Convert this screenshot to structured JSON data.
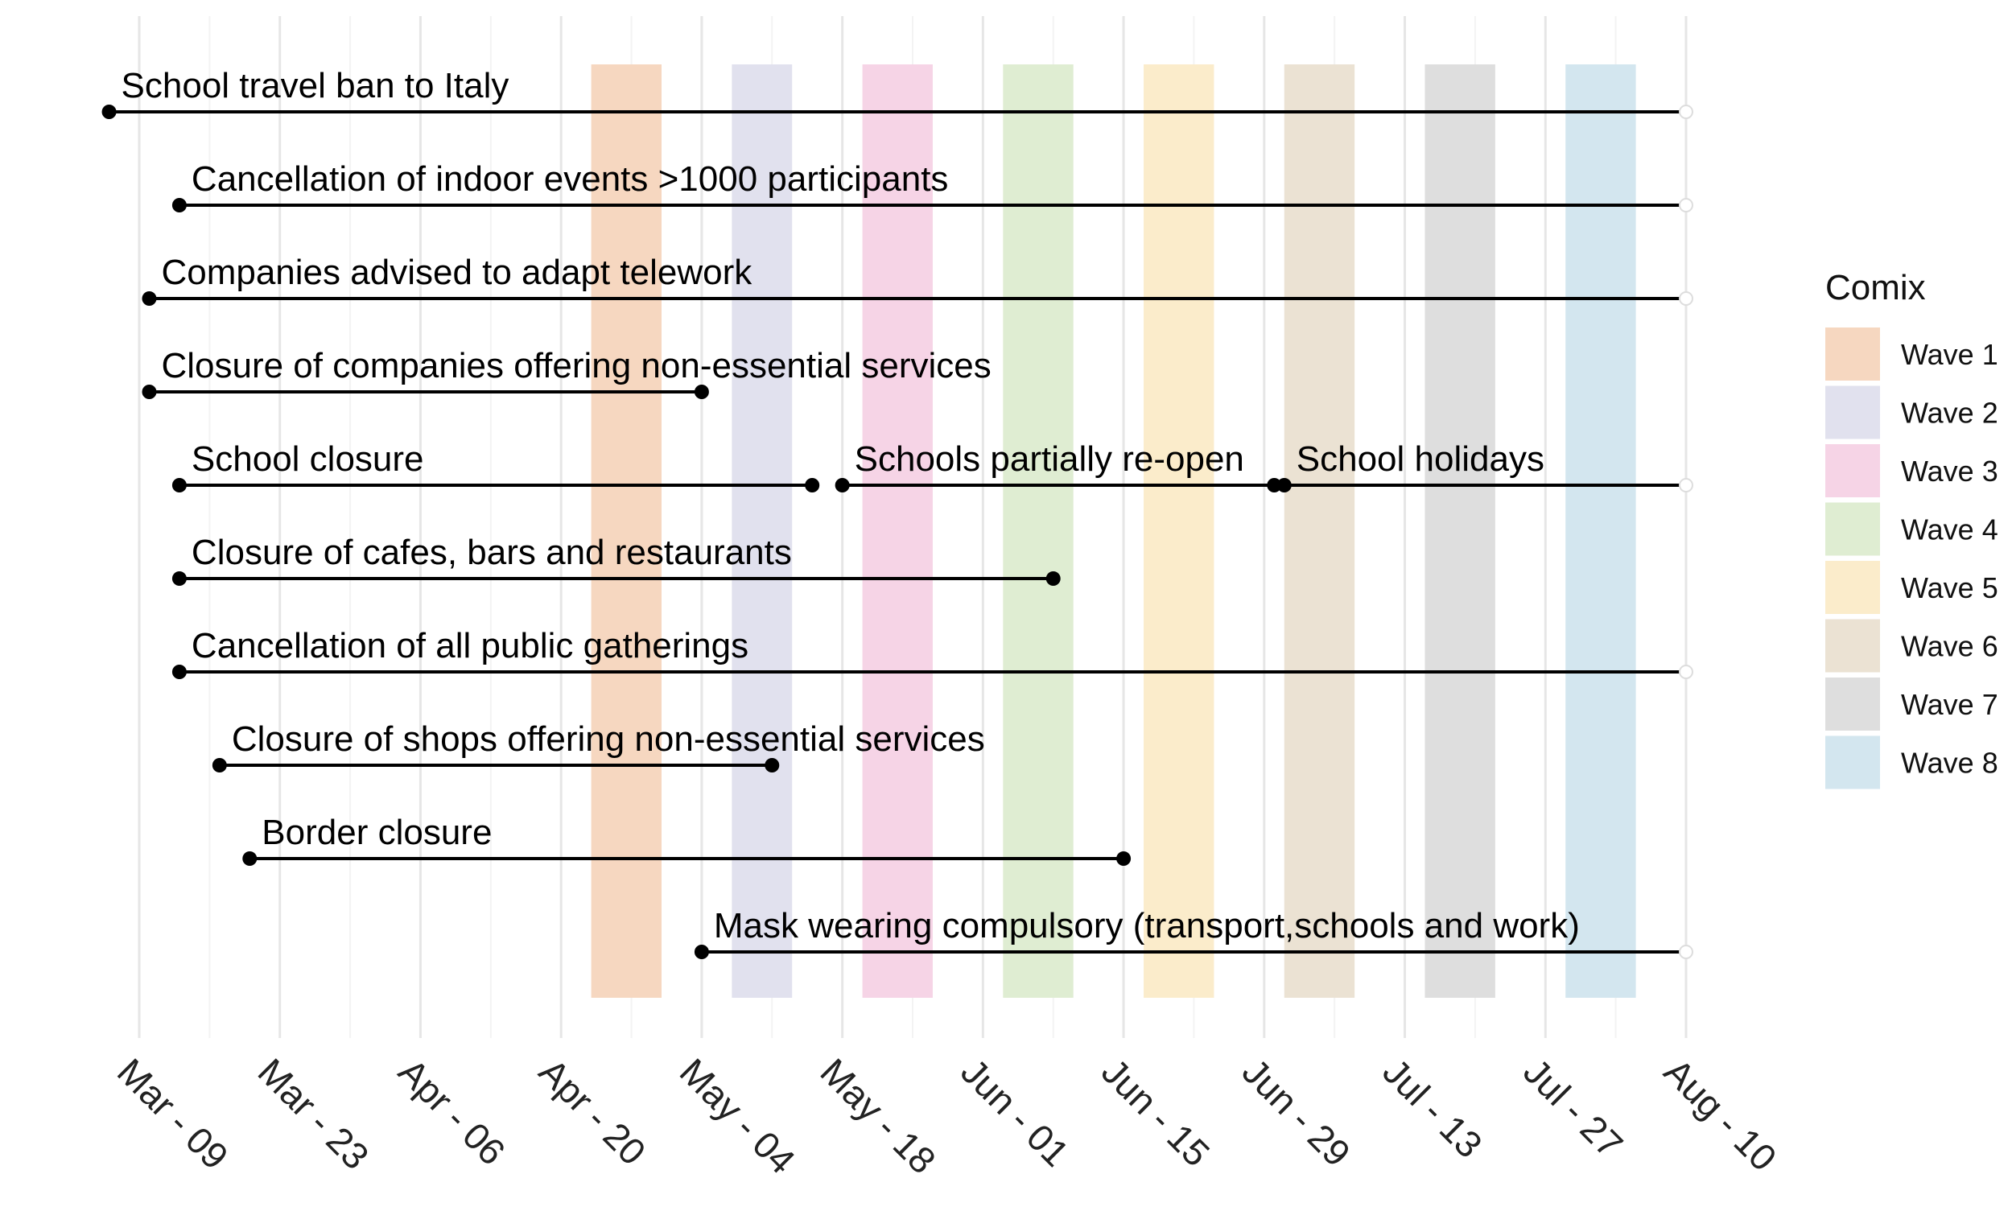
{
  "chart_data": {
    "type": "timeline",
    "x_ticks": [
      "Mar - 09",
      "Mar - 23",
      "Apr - 06",
      "Apr - 20",
      "May - 04",
      "May - 18",
      "Jun - 01",
      "Jun - 15",
      "Jun - 29",
      "Jul - 13",
      "Jul - 27",
      "Aug - 10"
    ],
    "xlim_days": [
      0,
      154
    ],
    "legend_title": "Comix",
    "waves": [
      {
        "name": "Wave 1",
        "start": 45,
        "end": 52,
        "color": "#f6d7c0"
      },
      {
        "name": "Wave 2",
        "start": 59,
        "end": 65,
        "color": "#e1e1ee"
      },
      {
        "name": "Wave 3",
        "start": 72,
        "end": 79,
        "color": "#f6d4e6"
      },
      {
        "name": "Wave 4",
        "start": 86,
        "end": 93,
        "color": "#dfedd2"
      },
      {
        "name": "Wave 5",
        "start": 100,
        "end": 107,
        "color": "#fbeccb"
      },
      {
        "name": "Wave 6",
        "start": 114,
        "end": 121,
        "color": "#ebe2d3"
      },
      {
        "name": "Wave 7",
        "start": 128,
        "end": 135,
        "color": "#dedede"
      },
      {
        "name": "Wave 8",
        "start": 142,
        "end": 149,
        "color": "#d3e6ef"
      }
    ],
    "measures": [
      {
        "label": "School travel ban to Italy",
        "start": -3,
        "end": 154,
        "open_end": true
      },
      {
        "label": "Cancellation of indoor events >1000 participants",
        "start": 4,
        "end": 154,
        "open_end": true
      },
      {
        "label": "Companies advised to adapt telework",
        "start": 1,
        "end": 154,
        "open_end": true
      },
      {
        "label": "Closure of companies offering non-essential services",
        "start": 1,
        "end": 56,
        "open_end": false
      },
      {
        "label": "School closure",
        "start": 4,
        "end": 67,
        "open_end": false
      },
      {
        "label": "Schools partially re-open",
        "start": 70,
        "end": 113,
        "open_end": false
      },
      {
        "label": "School holidays",
        "start": 114,
        "end": 154,
        "open_end": true
      },
      {
        "label": "Closure of cafes, bars and restaurants",
        "start": 4,
        "end": 91,
        "open_end": false
      },
      {
        "label": "Cancellation of all public gatherings",
        "start": 4,
        "end": 154,
        "open_end": true
      },
      {
        "label": "Closure of shops offering non-essential services",
        "start": 8,
        "end": 63,
        "open_end": false
      },
      {
        "label": "Border closure",
        "start": 11,
        "end": 98,
        "open_end": false
      },
      {
        "label": "Mask wearing compulsory (transport,schools and work)",
        "start": 56,
        "end": 154,
        "open_end": true
      }
    ]
  }
}
